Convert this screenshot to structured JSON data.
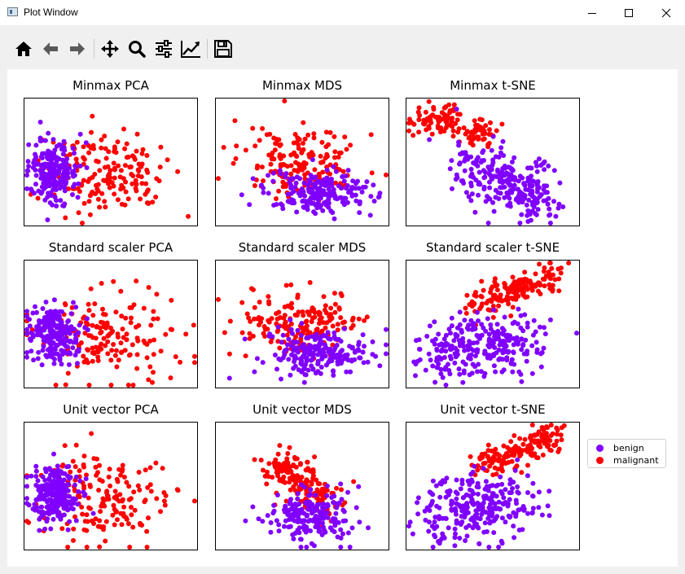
{
  "window": {
    "title": "Plot Window",
    "controls": [
      "minimize-icon",
      "maximize-icon",
      "close-icon"
    ]
  },
  "toolbar": {
    "buttons": [
      {
        "name": "home-button",
        "icon": "home-icon"
      },
      {
        "name": "back-button",
        "icon": "arrow-left-icon"
      },
      {
        "name": "forward-button",
        "icon": "arrow-right-icon"
      },
      {
        "name": "pan-button",
        "icon": "move-icon"
      },
      {
        "name": "zoom-button",
        "icon": "magnifier-icon"
      },
      {
        "name": "configure-subplots-button",
        "icon": "sliders-icon"
      },
      {
        "name": "edit-axes-button",
        "icon": "chart-line-icon"
      },
      {
        "name": "save-button",
        "icon": "floppy-disk-icon"
      }
    ]
  },
  "colors": {
    "benign": "#8000ff",
    "malignant": "#ff0000"
  },
  "legend": {
    "items": [
      {
        "label": "benign",
        "color": "#8000ff"
      },
      {
        "label": "malignant",
        "color": "#ff0000"
      }
    ],
    "position": "right"
  },
  "chart_data": [
    {
      "type": "scatter",
      "title": "Minmax PCA",
      "layout": "cluster-left",
      "series": [
        {
          "name": "benign"
        },
        {
          "name": "malignant"
        }
      ],
      "axes_ticks": false
    },
    {
      "type": "scatter",
      "title": "Minmax MDS",
      "layout": "cluster-stacked",
      "series": [
        {
          "name": "benign"
        },
        {
          "name": "malignant"
        }
      ],
      "axes_ticks": false
    },
    {
      "type": "scatter",
      "title": "Minmax t-SNE",
      "layout": "tsne-diagonal",
      "series": [
        {
          "name": "benign"
        },
        {
          "name": "malignant"
        }
      ],
      "axes_ticks": false
    },
    {
      "type": "scatter",
      "title": "Standard scaler PCA",
      "layout": "cluster-left",
      "series": [
        {
          "name": "benign"
        },
        {
          "name": "malignant"
        }
      ],
      "axes_ticks": false
    },
    {
      "type": "scatter",
      "title": "Standard scaler MDS",
      "layout": "cluster-stacked",
      "series": [
        {
          "name": "benign"
        },
        {
          "name": "malignant"
        }
      ],
      "axes_ticks": false
    },
    {
      "type": "scatter",
      "title": "Standard scaler t-SNE",
      "layout": "tsne-diagonal-up",
      "series": [
        {
          "name": "benign"
        },
        {
          "name": "malignant"
        }
      ],
      "axes_ticks": false
    },
    {
      "type": "scatter",
      "title": "Unit vector PCA",
      "layout": "cluster-left",
      "series": [
        {
          "name": "benign"
        },
        {
          "name": "malignant"
        }
      ],
      "axes_ticks": false
    },
    {
      "type": "scatter",
      "title": "Unit vector MDS",
      "layout": "cluster-diagonal",
      "series": [
        {
          "name": "benign"
        },
        {
          "name": "malignant"
        }
      ],
      "axes_ticks": false
    },
    {
      "type": "scatter",
      "title": "Unit vector t-SNE",
      "layout": "tsne-diagonal-up",
      "series": [
        {
          "name": "benign"
        },
        {
          "name": "malignant"
        }
      ],
      "axes_ticks": false
    }
  ]
}
